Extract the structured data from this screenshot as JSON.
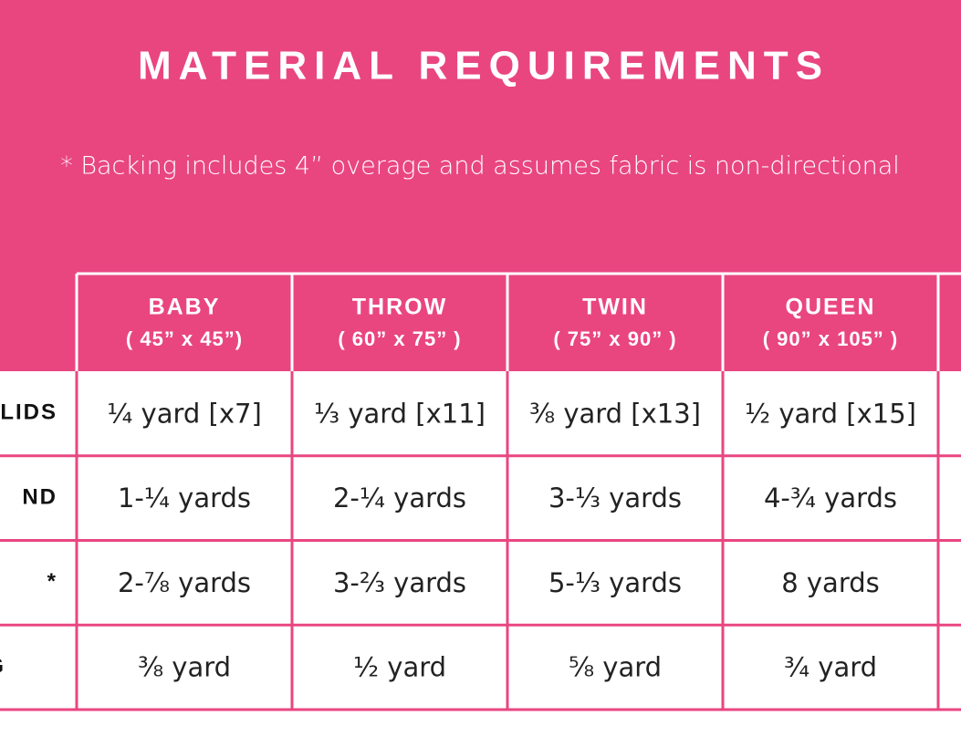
{
  "header": {
    "title": "MATERIAL REQUIREMENTS",
    "note": "* Backing includes 4” overage and assumes fabric is non-directional"
  },
  "table": {
    "columns": [
      {
        "name": "BABY",
        "size": "( 45” x 45”)"
      },
      {
        "name": "THROW",
        "size": "( 60” x 75” )"
      },
      {
        "name": "TWIN",
        "size": "( 75” x 90” )"
      },
      {
        "name": "QUEEN",
        "size": "( 90” x 105” )"
      }
    ],
    "rows": [
      {
        "label": "LIDS",
        "cells": [
          "¼ yard [x7]",
          "⅓ yard [x11]",
          "⅜ yard [x13]",
          "½ yard [x15]"
        ]
      },
      {
        "label": "ND",
        "cells": [
          "1-¼ yards",
          "2-¼ yards",
          "3-⅓ yards",
          "4-¾ yards"
        ]
      },
      {
        "label": "*",
        "cells": [
          "2-⅞ yards",
          "3-⅔ yards",
          "5-⅓ yards",
          "8 yards"
        ]
      },
      {
        "label": "G",
        "cells": [
          "⅜ yard",
          "½ yard",
          "⅝ yard",
          "¾ yard"
        ]
      }
    ]
  }
}
